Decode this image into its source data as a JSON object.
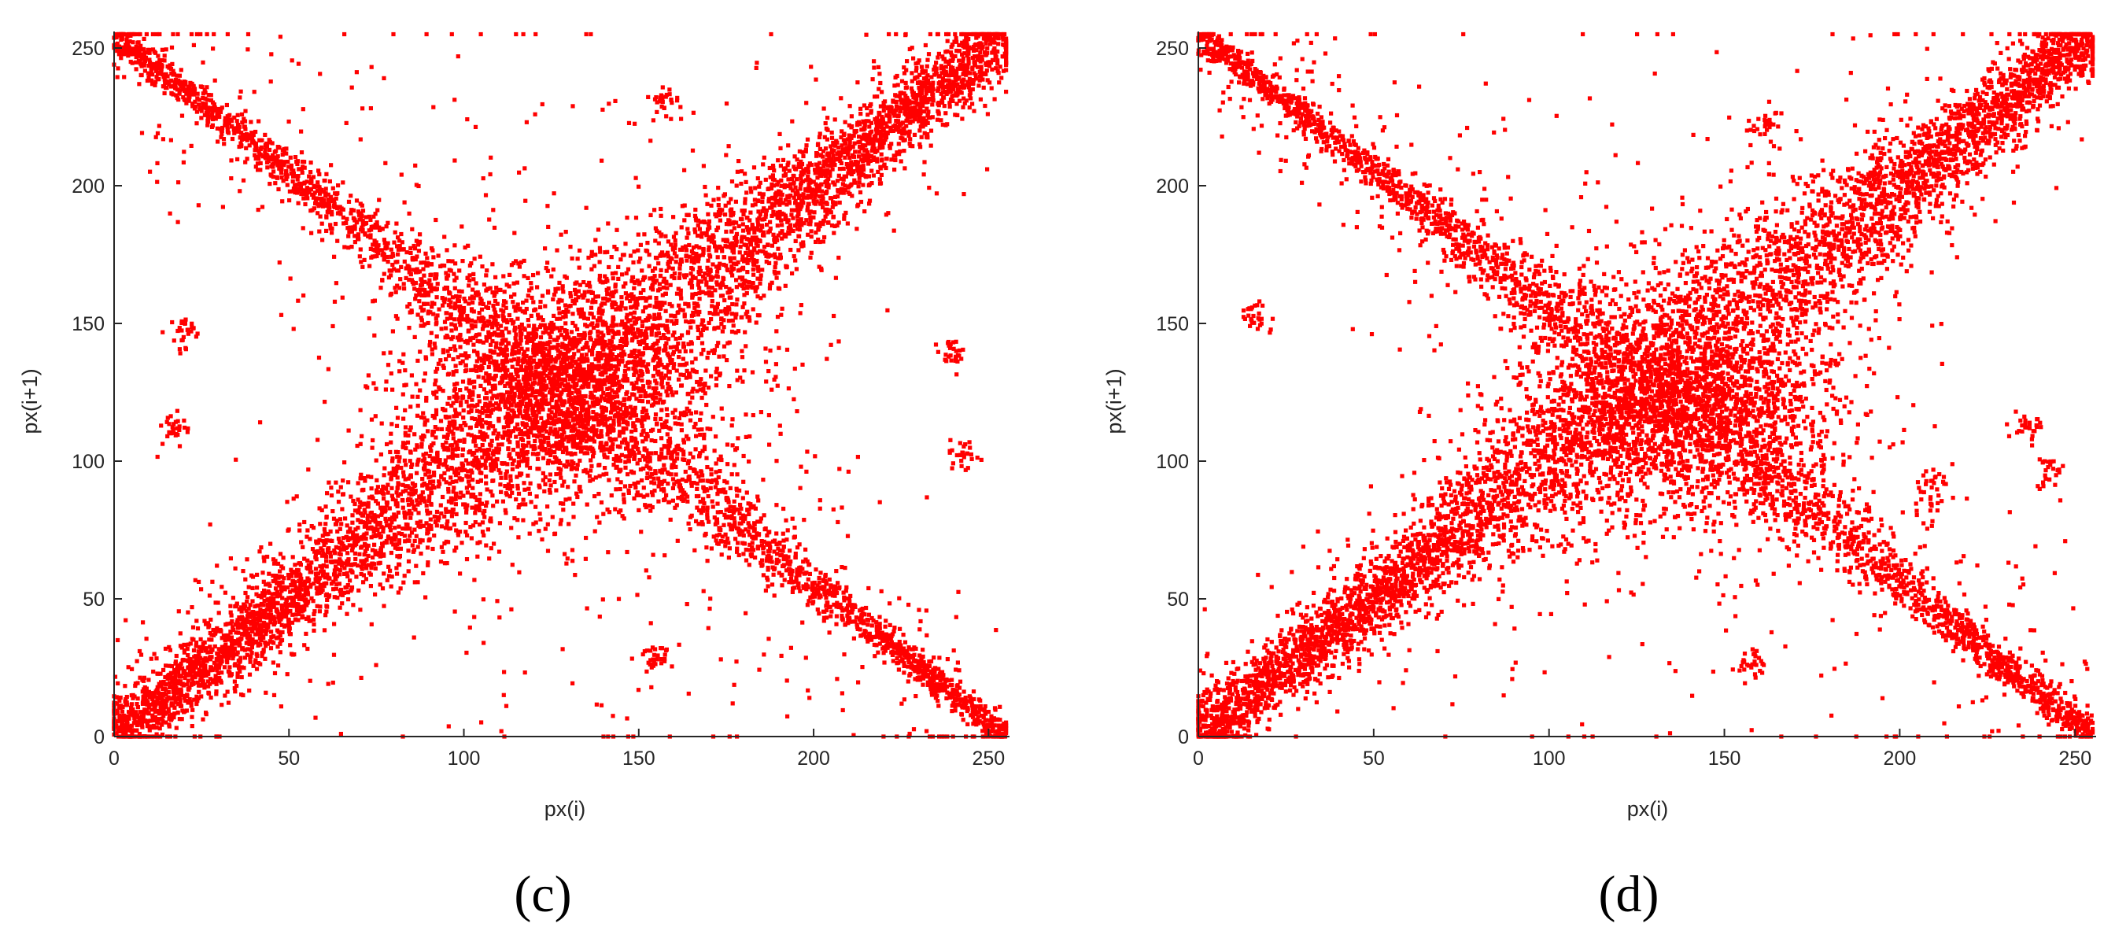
{
  "colors": {
    "marker": "#ff0000",
    "axis": "#262626",
    "background": "#ffffff"
  },
  "chart_data": [
    {
      "type": "scatter",
      "panel_label": "(c)",
      "title": "",
      "xlabel": "px(i)",
      "ylabel": "px(i+1)",
      "xlim": [
        0,
        256
      ],
      "ylim": [
        0,
        256
      ],
      "xticks": [
        0,
        50,
        100,
        150,
        200,
        250
      ],
      "yticks": [
        0,
        50,
        100,
        150,
        200,
        250
      ],
      "grid": false,
      "legend": "none",
      "marker_color": "#ff0000",
      "structure": {
        "main_diagonal": {
          "from": [
            0,
            0
          ],
          "to": [
            255,
            255
          ],
          "peak_width_at": [
            130,
            130
          ]
        },
        "anti_diagonal": {
          "from": [
            0,
            255
          ],
          "to": [
            255,
            0
          ],
          "center": [
            130,
            125
          ]
        }
      },
      "clusters": [
        {
          "x": 20,
          "y": 147
        },
        {
          "x": 17,
          "y": 110
        },
        {
          "x": 240,
          "y": 140
        },
        {
          "x": 242,
          "y": 102
        },
        {
          "x": 158,
          "y": 230
        },
        {
          "x": 155,
          "y": 28
        },
        {
          "x": 233,
          "y": 22
        }
      ]
    },
    {
      "type": "scatter",
      "panel_label": "(d)",
      "title": "",
      "xlabel": "px(i)",
      "ylabel": "px(i+1)",
      "xlim": [
        0,
        256
      ],
      "ylim": [
        0,
        256
      ],
      "xticks": [
        0,
        50,
        100,
        150,
        200,
        250
      ],
      "yticks": [
        0,
        50,
        100,
        150,
        200,
        250
      ],
      "grid": false,
      "legend": "none",
      "marker_color": "#ff0000",
      "structure": {
        "main_diagonal": {
          "from": [
            0,
            0
          ],
          "to": [
            255,
            255
          ],
          "peak_width_at": [
            140,
            140
          ]
        },
        "anti_diagonal": {
          "from": [
            0,
            255
          ],
          "to": [
            255,
            0
          ],
          "center": [
            140,
            118
          ]
        }
      },
      "clusters": [
        {
          "x": 16,
          "y": 152
        },
        {
          "x": 236,
          "y": 112
        },
        {
          "x": 243,
          "y": 96
        },
        {
          "x": 162,
          "y": 222
        },
        {
          "x": 158,
          "y": 27
        },
        {
          "x": 209,
          "y": 90
        },
        {
          "x": 230,
          "y": 25
        }
      ]
    }
  ]
}
